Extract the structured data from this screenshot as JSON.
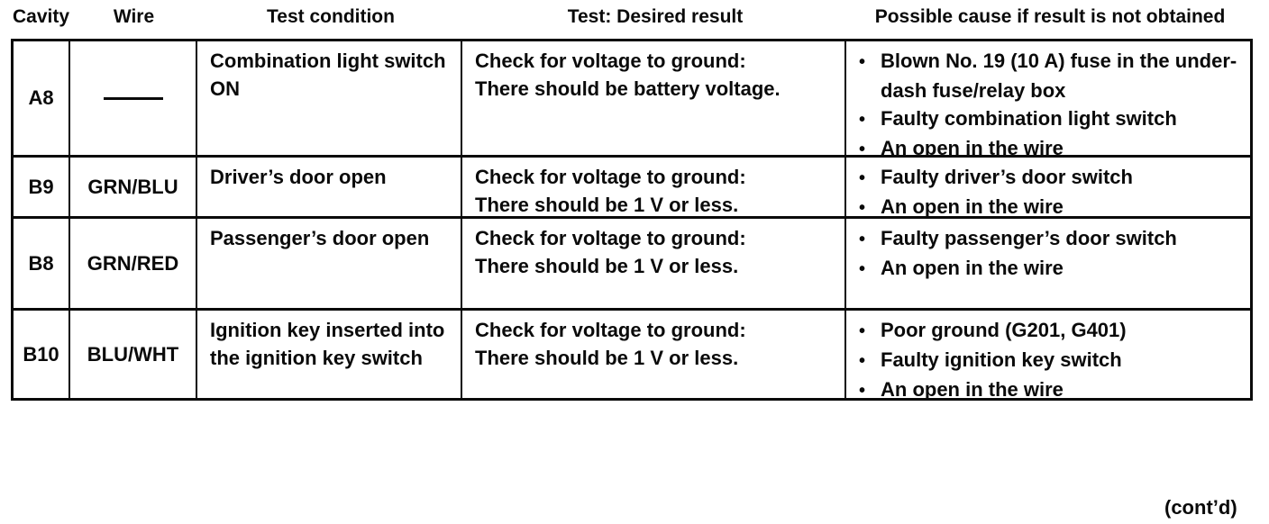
{
  "header": {
    "columns": [
      "Cavity",
      "Wire",
      "Test condition",
      "Test: Desired result",
      "Possible cause if result is not obtained"
    ]
  },
  "table": {
    "rows": [
      {
        "cavity": "A8",
        "wire": "",
        "condition": "Combination light switch ON",
        "result_lines": [
          "Check for voltage to ground:",
          "There should be battery voltage."
        ],
        "causes": [
          "Blown No. 19 (10 A) fuse in the under-dash fuse/relay box",
          "Faulty combination light switch",
          "An open in the wire"
        ]
      },
      {
        "cavity": "B9",
        "wire": "GRN/BLU",
        "condition": "Driver’s door open",
        "result_lines": [
          "Check for voltage to ground:",
          "There should be 1 V or less."
        ],
        "causes": [
          "Faulty driver’s door switch",
          "An open in the wire"
        ]
      },
      {
        "cavity": "B8",
        "wire": "GRN/RED",
        "condition": "Passenger’s door open",
        "result_lines": [
          "Check for voltage to ground:",
          "There should be 1 V or less."
        ],
        "causes": [
          "Faulty passenger’s door switch",
          "An open in the wire"
        ]
      },
      {
        "cavity": "B10",
        "wire": "BLU/WHT",
        "condition": "Ignition key inserted into the ignition key switch",
        "result_lines": [
          "Check for voltage to ground:",
          "There should be 1 V or less."
        ],
        "causes": [
          "Poor ground (G201, G401)",
          "Faulty ignition key switch",
          "An open in the wire"
        ]
      }
    ]
  },
  "footer": {
    "contd": "(cont’d)"
  }
}
